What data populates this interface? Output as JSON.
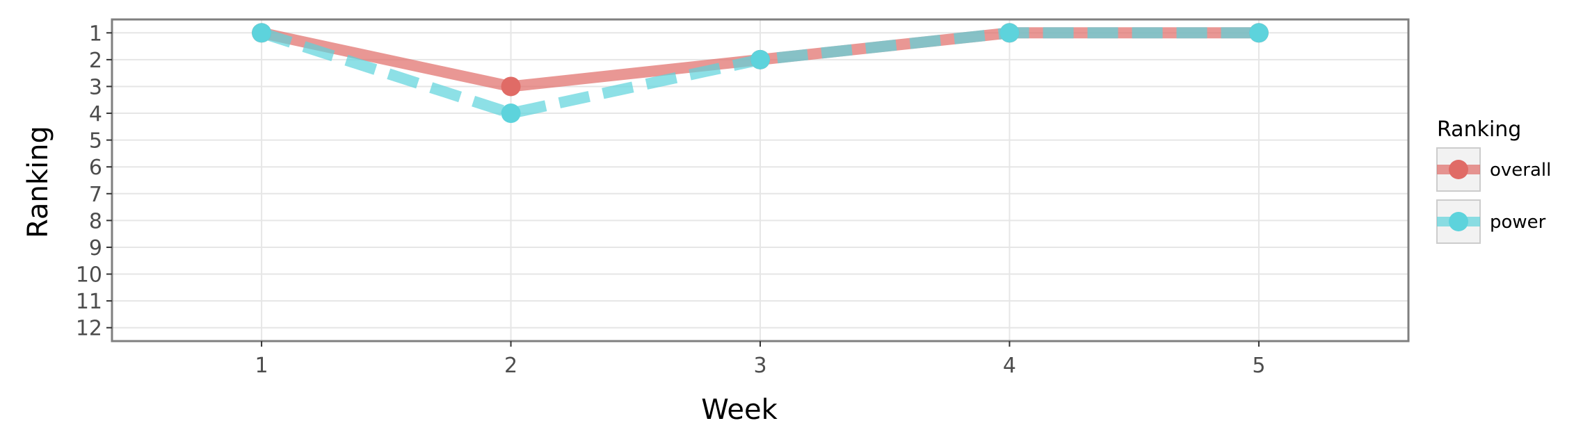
{
  "chart_data": {
    "type": "line",
    "xlabel": "Week",
    "ylabel": "Ranking",
    "x": [
      1,
      2,
      3,
      4,
      5
    ],
    "xlim": [
      0.4,
      5.6
    ],
    "ylim": [
      12.5,
      0.5
    ],
    "y_reversed": true,
    "yticks": [
      1,
      2,
      3,
      4,
      5,
      6,
      7,
      8,
      9,
      10,
      11,
      12
    ],
    "xticks": [
      1,
      2,
      3,
      4,
      5
    ],
    "grid": true,
    "legend": {
      "title": "Ranking",
      "placement": "right"
    },
    "series": [
      {
        "name": "overall",
        "values": [
          1,
          3,
          2,
          1,
          1
        ],
        "color": "#e06b66",
        "line_style": "solid"
      },
      {
        "name": "power",
        "values": [
          1,
          4,
          2,
          1,
          1
        ],
        "color": "#5dd3dc",
        "line_style": "dashed"
      }
    ]
  }
}
